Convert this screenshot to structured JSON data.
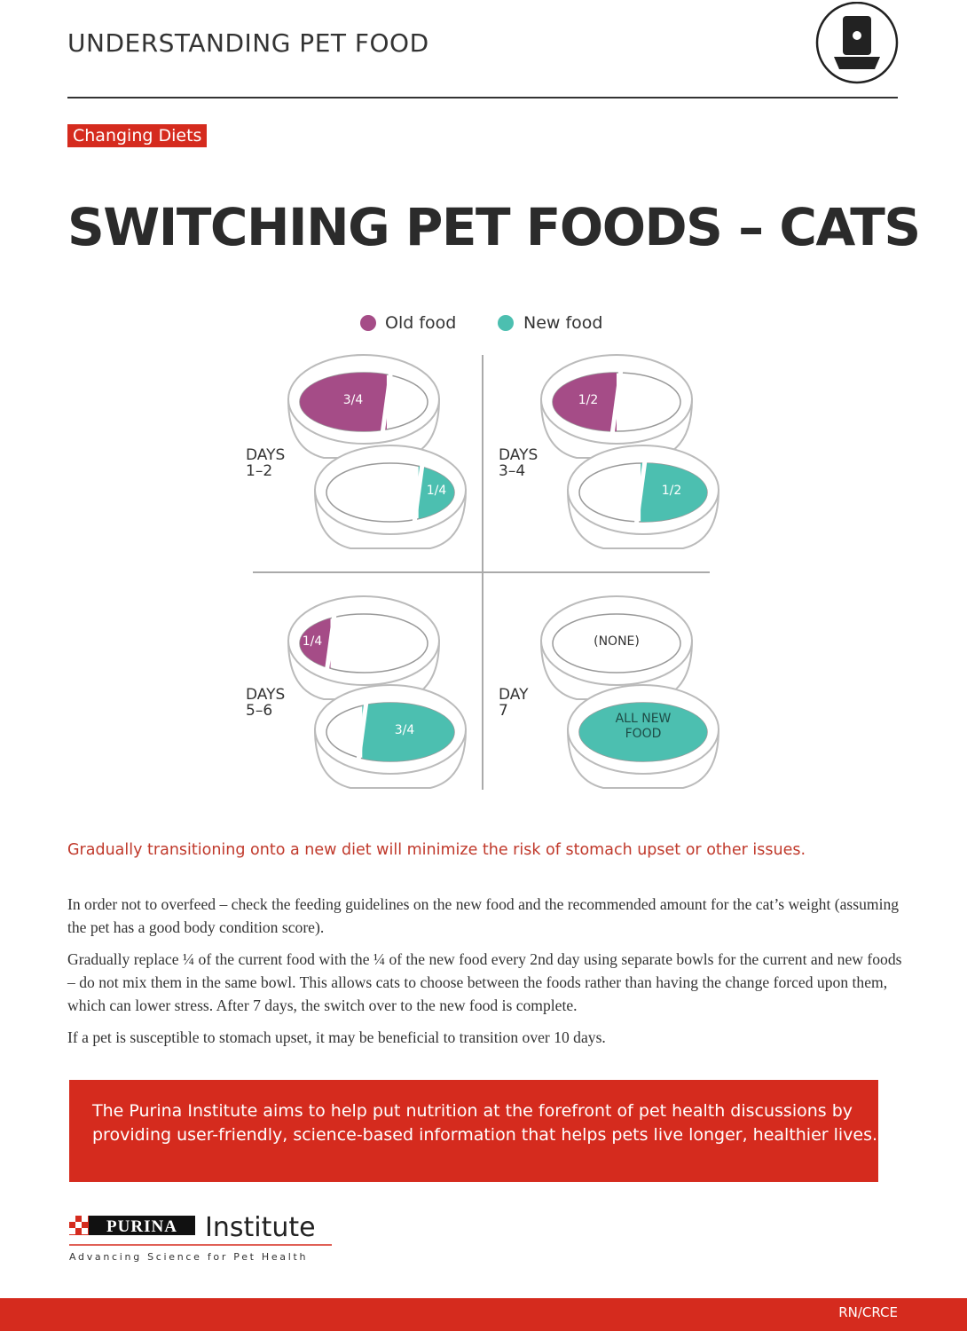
{
  "header": {
    "title": "UNDERSTANDING PET FOOD"
  },
  "tag": "Changing Diets",
  "title": "SWITCHING PET FOODS – CATS",
  "legend": [
    "Old food",
    "New food"
  ],
  "panels": [
    {
      "days": [
        "DAYS",
        "1–2"
      ],
      "old": "3/4",
      "new": "1/4"
    },
    {
      "days": [
        "DAYS",
        "3–4"
      ],
      "old": "1/2",
      "new": "1/2"
    },
    {
      "days": [
        "DAYS",
        "5–6"
      ],
      "old": "1/4",
      "new": "3/4"
    },
    {
      "days": [
        "DAY",
        "7"
      ],
      "old": "(NONE)",
      "new": [
        "ALL NEW",
        "FOOD"
      ]
    }
  ],
  "intro": "Gradually transitioning onto a new diet will minimize the risk of stomach upset or other issues.",
  "paragraphs": [
    "In order not to overfeed – check the feeding guidelines on the new food and the recommended amount for the cat’s weight (assuming the pet has a good body condition score).",
    "Gradually replace ¼ of the current food with the ¼ of the new food every 2nd day using separate bowls for the current and new foods – do not mix them in the same bowl. This allows cats to choose between the foods rather than having the change forced upon them, which can lower stress. After 7 days, the switch over to the new food is complete.",
    "If a pet is susceptible to stomach upset, it may be beneficial to transition over 10 days."
  ],
  "callout": "The Purina Institute aims to help put nutrition at the forefront of pet health discussions by providing user-friendly, science-based information that helps pets live longer, healthier lives.",
  "logo": {
    "brand": "PURINA",
    "name": "Institute",
    "tagline": "Advancing Science for Pet Health"
  },
  "footer": {
    "code": "RN/CRCE"
  }
}
